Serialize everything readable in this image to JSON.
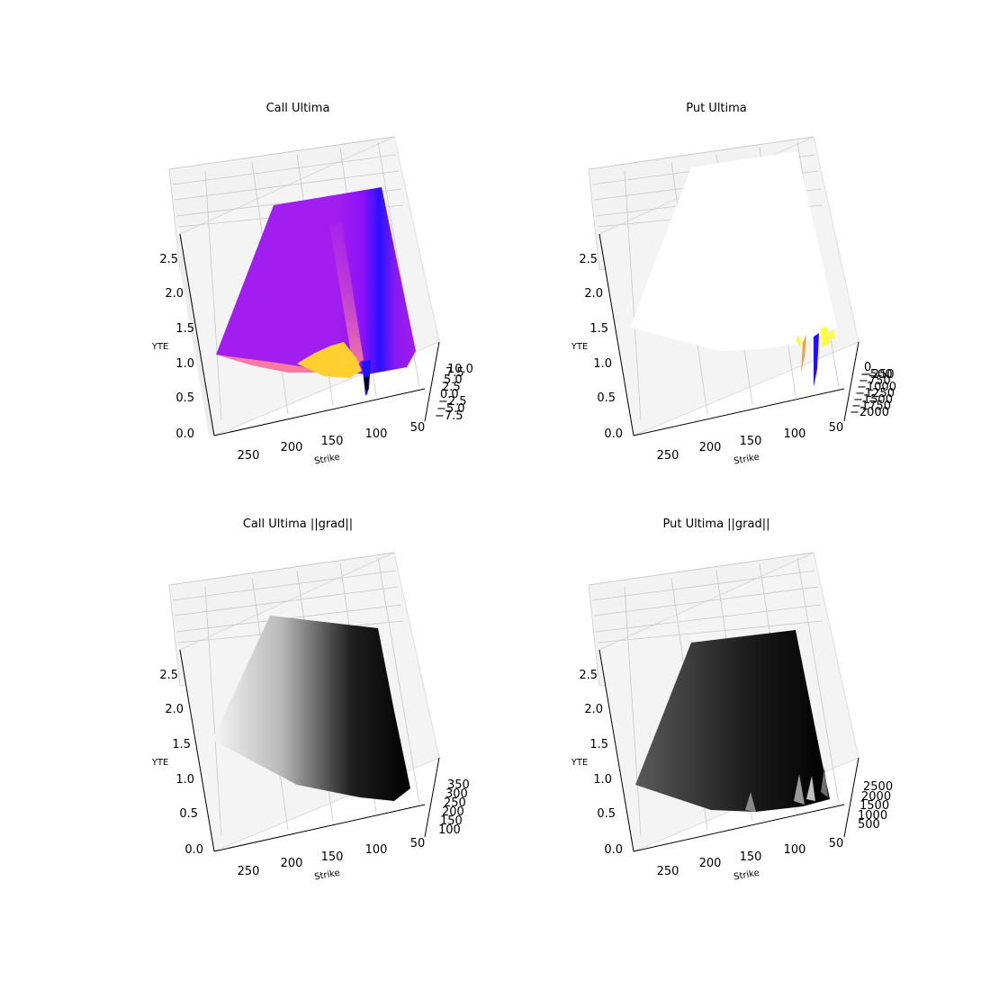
{
  "chart_data": [
    {
      "type": "surface3d",
      "title": "Call Ultima",
      "xlabel": "Strike",
      "ylabel": "YTE",
      "zlabel": "",
      "x_ticks": [
        "250",
        "200",
        "150",
        "100",
        "50"
      ],
      "y_ticks": [
        "0.0",
        "0.5",
        "1.0",
        "1.5",
        "2.0",
        "2.5"
      ],
      "z_ticks": [
        "−7.5",
        "−5.0",
        "−2.5",
        "0.0",
        "2.5",
        "5.0",
        "7.5",
        "10.0"
      ],
      "colormap": "gnuplot2",
      "colors": [
        "#a21df0",
        "#1a12ff",
        "#f87aa0",
        "#ffd030"
      ]
    },
    {
      "type": "surface3d",
      "title": "Put Ultima",
      "xlabel": "Strike",
      "ylabel": "YTE",
      "zlabel": "",
      "x_ticks": [
        "250",
        "200",
        "150",
        "100",
        "50"
      ],
      "y_ticks": [
        "0.0",
        "0.5",
        "1.0",
        "1.5",
        "2.0",
        "2.5"
      ],
      "z_ticks": [
        "−2000",
        "−1750",
        "−1500",
        "−1250",
        "−1000",
        "−750",
        "−500",
        "−250",
        "0"
      ],
      "colormap": "gnuplot2",
      "colors": [
        "#ffffff",
        "#ffff30",
        "#f0a040",
        "#2010ff"
      ]
    },
    {
      "type": "surface3d",
      "title": "Call Ultima ||grad||",
      "xlabel": "Strike",
      "ylabel": "YTE",
      "zlabel": "",
      "x_ticks": [
        "250",
        "200",
        "150",
        "100",
        "50"
      ],
      "y_ticks": [
        "0.0",
        "0.5",
        "1.0",
        "1.5",
        "2.0",
        "2.5"
      ],
      "z_ticks": [
        "100",
        "150",
        "200",
        "250",
        "300",
        "350"
      ],
      "colormap": "gray",
      "colors": [
        "#f6f6f6",
        "#000000"
      ]
    },
    {
      "type": "surface3d",
      "title": "Put Ultima ||grad||",
      "xlabel": "Strike",
      "ylabel": "YTE",
      "zlabel": "",
      "x_ticks": [
        "250",
        "200",
        "150",
        "100",
        "50"
      ],
      "y_ticks": [
        "0.0",
        "0.5",
        "1.0",
        "1.5",
        "2.0",
        "2.5"
      ],
      "z_ticks": [
        "500",
        "1000",
        "1500",
        "2000",
        "2500"
      ],
      "colormap": "gray",
      "colors": [
        "#5a5a5a",
        "#000000"
      ]
    }
  ]
}
